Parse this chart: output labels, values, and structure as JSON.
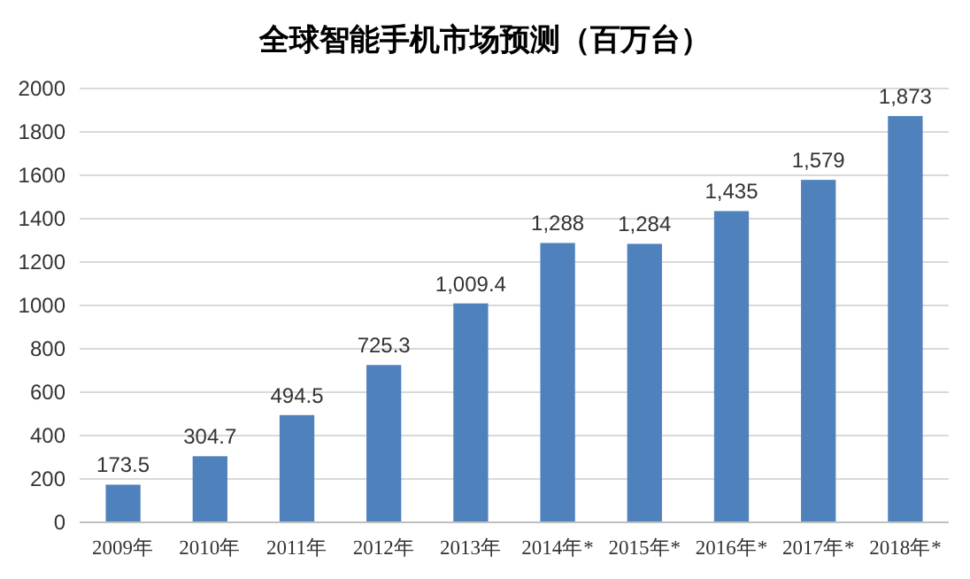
{
  "chart_data": {
    "type": "bar",
    "title": "全球智能手机市场预测（百万台）",
    "categories": [
      "2009年",
      "2010年",
      "2011年",
      "2012年",
      "2013年",
      "2014年*",
      "2015年*",
      "2016年*",
      "2017年*",
      "2018年*"
    ],
    "values": [
      173.5,
      304.7,
      494.5,
      725.3,
      1009.4,
      1288,
      1284,
      1435,
      1579,
      1873
    ],
    "value_labels": [
      "173.5",
      "304.7",
      "494.5",
      "725.3",
      "1,009.4",
      "1,288",
      "1,284",
      "1,435",
      "1,579",
      "1,873"
    ],
    "color": "#4f81bd",
    "ylim": [
      0,
      2000
    ],
    "yticks": [
      0,
      200,
      400,
      600,
      800,
      1000,
      1200,
      1400,
      1600,
      1800,
      2000
    ],
    "grid": "y"
  }
}
